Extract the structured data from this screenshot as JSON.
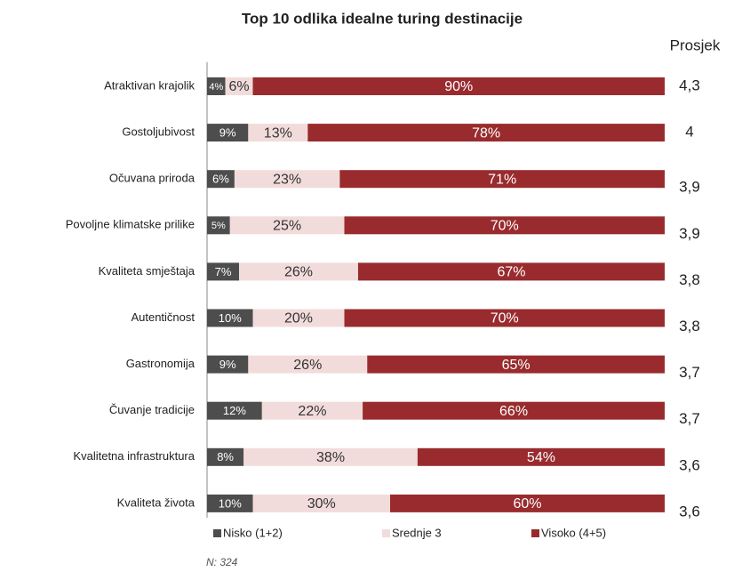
{
  "chart_data": {
    "type": "stacked_barh",
    "title": "Top 10 odlika idealne turing destinacije",
    "categories": [
      "Atraktivan krajolik",
      "Gostoljubivost",
      "Očuvana priroda",
      "Povoljne klimatske prilike",
      "Kvaliteta smještaja",
      "Autentičnost",
      "Gastronomija",
      "Čuvanje tradicije",
      "Kvalitetna infrastruktura",
      "Kvaliteta života"
    ],
    "series": [
      {
        "name": "Nisko (1+2)",
        "color": "#4d4d4d",
        "values": [
          4,
          9,
          6,
          5,
          7,
          10,
          9,
          12,
          8,
          10
        ],
        "value_labels": [
          "4%",
          "9%",
          "6%",
          "5%",
          "7%",
          "10%",
          "9%",
          "12%",
          "8%",
          "10%"
        ]
      },
      {
        "name": "Srednje 3",
        "color": "#f2dcdb",
        "values": [
          6,
          13,
          23,
          25,
          26,
          20,
          26,
          22,
          38,
          30
        ],
        "value_labels": [
          "6%",
          "13%",
          "23%",
          "25%",
          "26%",
          "20%",
          "26%",
          "22%",
          "38%",
          "30%"
        ]
      },
      {
        "name": "Visoko (4+5)",
        "color": "#992b2e",
        "values": [
          90,
          78,
          71,
          70,
          67,
          70,
          65,
          66,
          54,
          60
        ],
        "value_labels": [
          "90%",
          "78%",
          "71%",
          "70%",
          "67%",
          "70%",
          "65%",
          "66%",
          "54%",
          "60%"
        ]
      }
    ],
    "xlim": [
      0,
      100
    ],
    "averages_title": "Prosjek",
    "averages": [
      {
        "value": 4.3,
        "label": "4,3"
      },
      4,
      {
        "value": 3.9,
        "label": "3,9"
      },
      {
        "value": 3.9,
        "label": "3,9"
      },
      {
        "value": 3.8,
        "label": "3,8"
      },
      {
        "value": 3.8,
        "label": "3,8"
      },
      {
        "value": 3.7,
        "label": "3,7"
      },
      {
        "value": 3.7,
        "label": "3,7"
      },
      {
        "value": 3.6,
        "label": "3,6"
      },
      {
        "value": 3.6,
        "label": "3,6"
      }
    ],
    "note": "N: 324"
  }
}
